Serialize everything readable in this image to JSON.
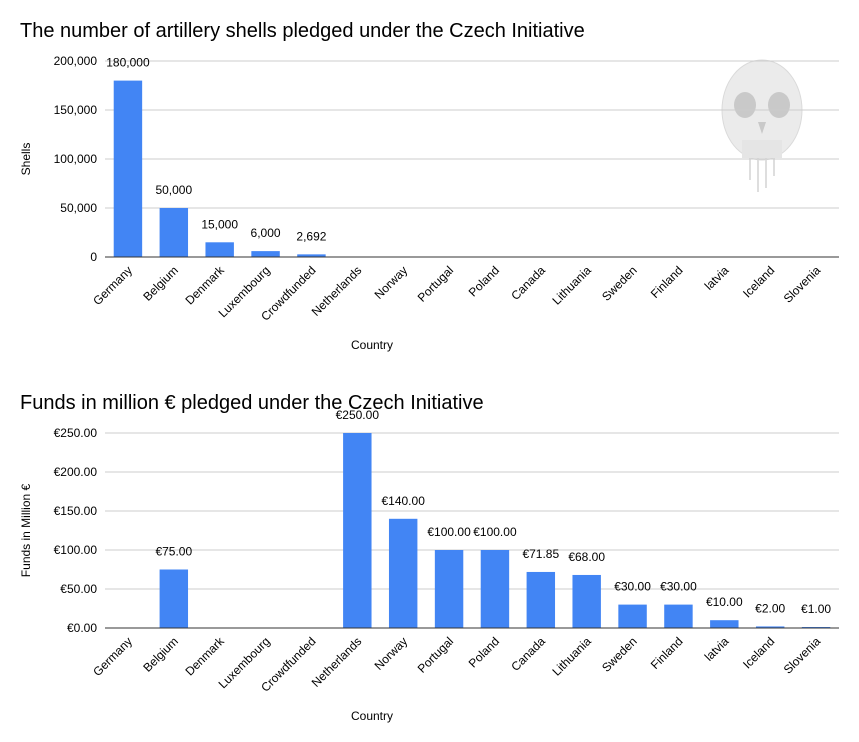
{
  "chart_data": [
    {
      "type": "bar",
      "title": "The number of artillery shells pledged under the Czech Initiative",
      "xlabel": "Country",
      "ylabel": "Shells",
      "ylim": [
        0,
        200000
      ],
      "yticks": [
        0,
        50000,
        100000,
        150000,
        200000
      ],
      "ytick_labels": [
        "0",
        "50,000",
        "100,000",
        "150,000",
        "200,000"
      ],
      "categories": [
        "Germany",
        "Belgium",
        "Denmark",
        "Luxembourg",
        "Crowdfunded",
        "Netherlands",
        "Norway",
        "Portugal",
        "Poland",
        "Canada",
        "Lithuania",
        "Sweden",
        "Finland",
        "latvia",
        "Iceland",
        "Slovenia"
      ],
      "values": [
        180000,
        50000,
        15000,
        6000,
        2692,
        null,
        null,
        null,
        null,
        null,
        null,
        null,
        null,
        null,
        null,
        null
      ],
      "data_labels": [
        "180,000",
        "50,000",
        "15,000",
        "6,000",
        "2,692",
        "",
        "",
        "",
        "",
        "",
        "",
        "",
        "",
        "",
        "",
        ""
      ],
      "grid": true,
      "bar_color": "#4285f4"
    },
    {
      "type": "bar",
      "title": "Funds in million € pledged under the Czech Initiative",
      "xlabel": "Country",
      "ylabel": "Funds in Million €",
      "ylim": [
        0,
        250
      ],
      "yticks": [
        0,
        50,
        100,
        150,
        200,
        250
      ],
      "ytick_labels": [
        "€0.00",
        "€50.00",
        "€100.00",
        "€150.00",
        "€200.00",
        "€250.00"
      ],
      "categories": [
        "Germany",
        "Belgium",
        "Denmark",
        "Luxembourg",
        "Crowdfunded",
        "Netherlands",
        "Norway",
        "Portugal",
        "Poland",
        "Canada",
        "Lithuania",
        "Sweden",
        "Finland",
        "latvia",
        "Iceland",
        "Slovenia"
      ],
      "values": [
        null,
        75,
        null,
        null,
        null,
        250,
        140,
        100,
        100,
        71.85,
        68,
        30,
        30,
        10,
        2,
        1
      ],
      "data_labels": [
        "",
        "€75.00",
        "",
        "",
        "",
        "€250.00",
        "€140.00",
        "€100.00",
        "€100.00",
        "€71.85",
        "€68.00",
        "€30.00",
        "€30.00",
        "€10.00",
        "€2.00",
        "€1.00"
      ],
      "grid": true,
      "bar_color": "#4285f4"
    }
  ],
  "colors": {
    "bar": "#4285f4",
    "grid": "#cccccc",
    "axis": "#333333",
    "watermark": "#c8c8c8"
  },
  "watermark_icon": "skull-icon"
}
